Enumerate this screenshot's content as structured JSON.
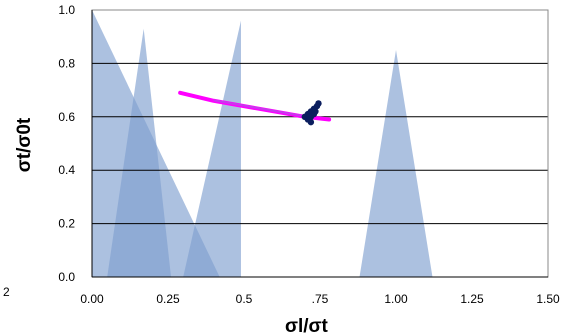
{
  "chart_data": {
    "type": "area",
    "xlabel": "σl/σt",
    "ylabel": "σt/σ0t",
    "xlim": [
      0,
      1.5
    ],
    "ylim": [
      0,
      1.0
    ],
    "grid": "horizontal",
    "legend": "none",
    "x_ticks": [
      "0.00",
      "0.25",
      "0.5",
      ".75",
      "1.00",
      "1.25",
      "1.50"
    ],
    "y_ticks": [
      "0.0",
      "0.2",
      "0.4",
      "0.6",
      "0.8",
      "1.0"
    ],
    "stray_tick_label": "2",
    "colors": {
      "area": "#7f9fcf",
      "area_opacity": 0.65,
      "trend": "#ff00ff",
      "cluster": "#0b1e5e",
      "grid": "#000000"
    },
    "series": [
      {
        "type": "area",
        "points": [
          [
            0.0,
            1.0
          ],
          [
            0.42,
            0.0
          ],
          [
            0.0,
            0.0
          ]
        ]
      },
      {
        "type": "area",
        "points": [
          [
            0.05,
            0.0
          ],
          [
            0.17,
            0.93
          ],
          [
            0.26,
            0.0
          ]
        ]
      },
      {
        "type": "area",
        "points": [
          [
            0.3,
            0.0
          ],
          [
            0.49,
            0.96
          ],
          [
            0.49,
            0.0
          ]
        ]
      },
      {
        "type": "area",
        "points": [
          [
            0.88,
            0.0
          ],
          [
            1.0,
            0.85
          ],
          [
            1.12,
            0.0
          ]
        ]
      },
      {
        "type": "line",
        "points": [
          [
            0.29,
            0.69
          ],
          [
            0.4,
            0.66
          ],
          [
            0.5,
            0.64
          ],
          [
            0.6,
            0.62
          ],
          [
            0.7,
            0.6
          ],
          [
            0.78,
            0.59
          ]
        ]
      },
      {
        "type": "scatter",
        "points": [
          [
            0.7,
            0.6
          ],
          [
            0.71,
            0.59
          ],
          [
            0.72,
            0.6
          ],
          [
            0.71,
            0.61
          ],
          [
            0.72,
            0.62
          ],
          [
            0.73,
            0.63
          ],
          [
            0.74,
            0.64
          ],
          [
            0.745,
            0.65
          ],
          [
            0.73,
            0.61
          ],
          [
            0.72,
            0.58
          ],
          [
            0.715,
            0.6
          ],
          [
            0.735,
            0.62
          ]
        ]
      }
    ]
  }
}
